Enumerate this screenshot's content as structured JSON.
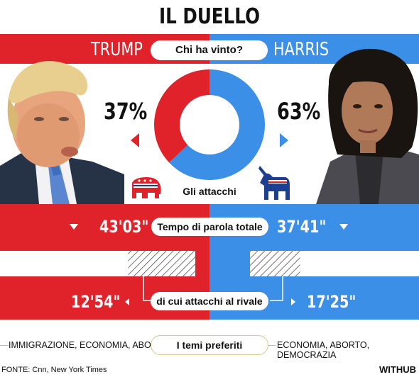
{
  "title": "IL DUELLO",
  "winner": {
    "question": "Chi ha vinto?",
    "left_name": "TRUMP",
    "right_name": "HARRIS",
    "left_pct_label": "37%",
    "right_pct_label": "63%"
  },
  "attacks_label": "Gli attacchi",
  "speaking": {
    "label": "Tempo di parola totale",
    "left_value": "43'03\"",
    "right_value": "37'41\""
  },
  "attacks_on_rival": {
    "label": "di cui attacchi al rivale",
    "left_value": "12'54\"",
    "right_value": "17'25\""
  },
  "themes": {
    "label": "I temi preferiti",
    "left": "IMMIGRAZIONE, ECONOMIA, ABORTO",
    "right": "ECONOMIA, ABORTO, DEMOCRAZIA"
  },
  "source": "FONTE: Cnn, New York Times",
  "brand": "WITHUB",
  "colors": {
    "red": "#e0232a",
    "blue": "#3b8fe6"
  },
  "icons": {
    "left_party": "republican-elephant-icon",
    "right_party": "democratic-donkey-icon"
  },
  "chart_data": [
    {
      "type": "pie",
      "title": "Chi ha vinto?",
      "categories": [
        "TRUMP",
        "HARRIS"
      ],
      "values": [
        37,
        63
      ],
      "colors": [
        "#e0232a",
        "#3b8fe6"
      ]
    },
    {
      "type": "bar",
      "title": "Tempo di parola totale",
      "categories": [
        "TRUMP",
        "HARRIS"
      ],
      "series": [
        {
          "name": "Tempo di parola totale",
          "values": [
            2583,
            2261
          ]
        },
        {
          "name": "di cui attacchi al rivale",
          "values": [
            774,
            1045
          ]
        }
      ],
      "unit": "seconds"
    }
  ]
}
